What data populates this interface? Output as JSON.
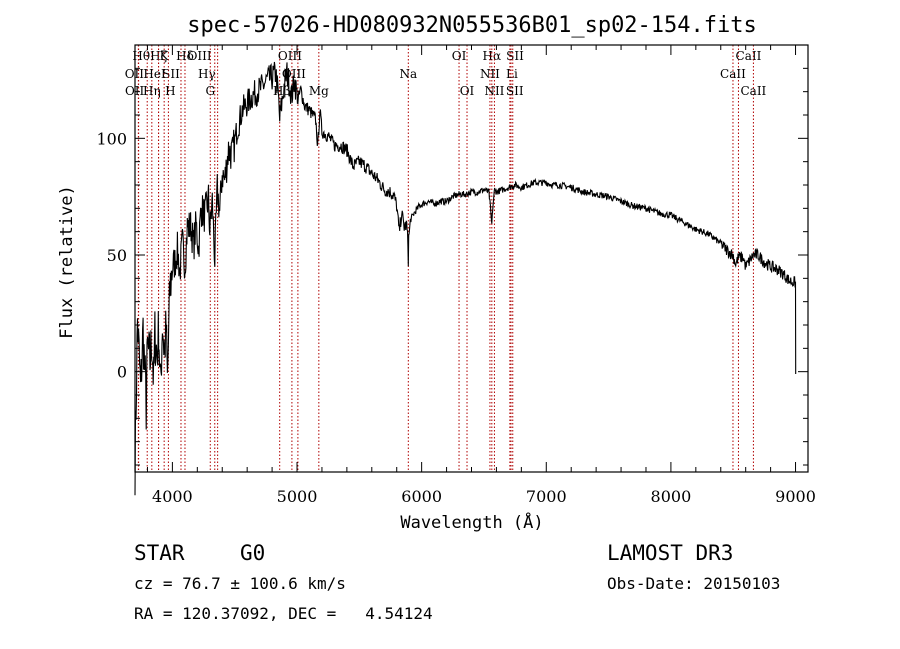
{
  "chart_data": {
    "type": "line",
    "title": "spec-57026-HD080932N055536B01_sp02-154.fits",
    "xlabel": "Wavelength (Å)",
    "ylabel": "Flux (relative)",
    "xlim": [
      3700,
      9100
    ],
    "ylim": [
      -43,
      140
    ],
    "x_ticks": [
      4000,
      5000,
      6000,
      7000,
      8000,
      9000
    ],
    "y_ticks": [
      0,
      50,
      100
    ],
    "series": [
      {
        "name": "spectrum",
        "x": [
          3700,
          3720,
          3745,
          3765,
          3790,
          3800,
          3820,
          3835,
          3850,
          3860,
          3880,
          3890,
          3905,
          3920,
          3935,
          3950,
          3960,
          3968,
          3980,
          4000,
          4020,
          4040,
          4060,
          4080,
          4101,
          4120,
          4150,
          4170,
          4190,
          4210,
          4230,
          4260,
          4290,
          4300,
          4320,
          4340,
          4360,
          4380,
          4400,
          4420,
          4450,
          4480,
          4520,
          4560,
          4600,
          4640,
          4680,
          4720,
          4760,
          4800,
          4830,
          4850,
          4861,
          4880,
          4900,
          4920,
          4940,
          4957,
          4980,
          5007,
          5030,
          5060,
          5100,
          5150,
          5167,
          5183,
          5200,
          5250,
          5300,
          5350,
          5400,
          5450,
          5500,
          5550,
          5600,
          5650,
          5700,
          5750,
          5780,
          5800,
          5820,
          5840,
          5860,
          5880,
          5890,
          5893,
          5896,
          5910,
          5940,
          5980,
          6050,
          6100,
          6150,
          6200,
          6250,
          6300,
          6350,
          6400,
          6450,
          6500,
          6540,
          6555,
          6563,
          6570,
          6585,
          6600,
          6650,
          6700,
          6750,
          6800,
          6850,
          6900,
          6950,
          7000,
          7050,
          7100,
          7200,
          7300,
          7400,
          7500,
          7600,
          7700,
          7800,
          7900,
          8000,
          8100,
          8200,
          8300,
          8400,
          8450,
          8498,
          8520,
          8542,
          8580,
          8600,
          8662,
          8700,
          8750,
          8800,
          8850,
          8900,
          8950,
          9000,
          9001
        ],
        "y": [
          -40,
          22,
          -8,
          18,
          -15,
          10,
          4,
          14,
          -5,
          16,
          6,
          20,
          -8,
          22,
          8,
          18,
          -4,
          12,
          35,
          45,
          47,
          52,
          43,
          55,
          46,
          62,
          62,
          54,
          63,
          53,
          70,
          67,
          74,
          60,
          73,
          48,
          78,
          68,
          85,
          82,
          95,
          93,
          104,
          112,
          115,
          118,
          120,
          122,
          125,
          126,
          128,
          118,
          108,
          116,
          124,
          128,
          123,
          118,
          125,
          116,
          121,
          114,
          112,
          108,
          96,
          112,
          103,
          101,
          97,
          97,
          95,
          88,
          90,
          88,
          85,
          82,
          78,
          77,
          75,
          71,
          60,
          68,
          62,
          63,
          55,
          48,
          57,
          65,
          68,
          71,
          73,
          72,
          73,
          73,
          75,
          76,
          76,
          77,
          77,
          78,
          77,
          68,
          63,
          70,
          78,
          77,
          78,
          79,
          80,
          79,
          80,
          81,
          81,
          81,
          80,
          80,
          79,
          77,
          76,
          75,
          73,
          71,
          70,
          68,
          67,
          64,
          61,
          59,
          55,
          52,
          50,
          46,
          49,
          49,
          45,
          50,
          50,
          47,
          45,
          44,
          42,
          39,
          38,
          -1
        ]
      }
    ],
    "lines": [
      {
        "label": "Hθ",
        "wl": 3798,
        "row": 0,
        "dx": -6
      },
      {
        "label": "OII",
        "wl": 3727,
        "row": 1,
        "dx": -4
      },
      {
        "label": "OII",
        "wl": 3729,
        "row": 2,
        "dx": -4
      },
      {
        "label": "Hη",
        "wl": 3835,
        "row": 2,
        "dx": 0
      },
      {
        "label": "Hζ",
        "wl": 3889,
        "row": 0,
        "dx": 0
      },
      {
        "label": "HeI",
        "wl": 3889,
        "row": 1,
        "dx": -4
      },
      {
        "label": "K",
        "wl": 3934,
        "row": 0,
        "dx": 0
      },
      {
        "label": "SII",
        "wl": 4069,
        "row": 1,
        "dx": -10
      },
      {
        "label": "H",
        "wl": 3968,
        "row": 2,
        "dx": 2
      },
      {
        "label": "Hδ",
        "wl": 4101,
        "row": 0,
        "dx": 0
      },
      {
        "label": "OIII",
        "wl": 4363,
        "row": 0,
        "dx": -18
      },
      {
        "label": "Hγ",
        "wl": 4340,
        "row": 1,
        "dx": -8
      },
      {
        "label": "G",
        "wl": 4304,
        "row": 2,
        "dx": 0
      },
      {
        "label": "Hβ",
        "wl": 4861,
        "row": 2,
        "dx": 2
      },
      {
        "label": "OIII",
        "wl": 4959,
        "row": 0,
        "dx": -2
      },
      {
        "label": "OIII",
        "wl": 5007,
        "row": 1,
        "dx": -4
      },
      {
        "label": "Mg",
        "wl": 5175,
        "row": 2,
        "dx": 0
      },
      {
        "label": "Na",
        "wl": 5893,
        "row": 1,
        "dx": 0
      },
      {
        "label": "OI",
        "wl": 6300,
        "row": 0,
        "dx": 0
      },
      {
        "label": "OI",
        "wl": 6364,
        "row": 2,
        "dx": 0
      },
      {
        "label": "Hα",
        "wl": 6563,
        "row": 0,
        "dx": 0
      },
      {
        "label": "NII",
        "wl": 6548,
        "row": 1,
        "dx": 0
      },
      {
        "label": "NII",
        "wl": 6584,
        "row": 2,
        "dx": 0
      },
      {
        "label": "SII",
        "wl": 6717,
        "row": 0,
        "dx": 4
      },
      {
        "label": "Li",
        "wl": 6708,
        "row": 1,
        "dx": 2
      },
      {
        "label": "SII",
        "wl": 6731,
        "row": 2,
        "dx": 2
      },
      {
        "label": "CaII",
        "wl": 8542,
        "row": 0,
        "dx": 10
      },
      {
        "label": "CaII",
        "wl": 8498,
        "row": 1,
        "dx": 0
      },
      {
        "label": "CaII",
        "wl": 8662,
        "row": 2,
        "dx": 0
      }
    ]
  },
  "info": {
    "object_type": "STAR",
    "subclass": "G0",
    "survey": "LAMOST DR3",
    "cz": "cz = 76.7 ± 100.6 km/s",
    "obs_date": "Obs-Date: 20150103",
    "coords": "RA = 120.37092, DEC =   4.54124"
  }
}
